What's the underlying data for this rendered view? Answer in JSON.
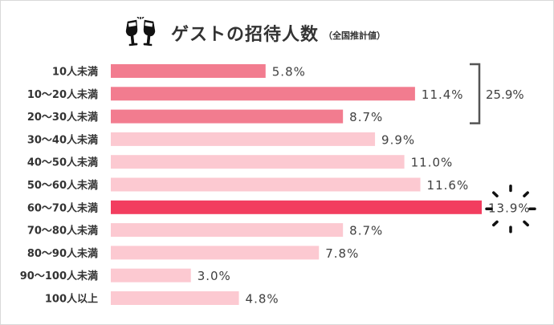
{
  "title": "ゲストの招待人数",
  "subtitle": "（全国推計値）",
  "colors": {
    "top3": "#f27c8f",
    "normal": "#fcc9d1",
    "highlight": "#f23d5f",
    "bracket": "#555555",
    "spark": "#111111"
  },
  "icon": "champagne-glasses-icon",
  "chart_data": {
    "type": "bar",
    "orientation": "horizontal",
    "categories": [
      "10人未満",
      "10～20人未満",
      "20～30人未満",
      "30～40人未満",
      "40～50人未満",
      "50～60人未満",
      "60～70人未満",
      "70～80人未満",
      "80～90人未満",
      "90～100人未満",
      "100人以上"
    ],
    "values": [
      5.8,
      11.4,
      8.7,
      9.9,
      11.0,
      11.6,
      13.9,
      8.7,
      7.8,
      3.0,
      4.8
    ],
    "value_labels": [
      "5.8%",
      "11.4%",
      "8.7%",
      "9.9%",
      "11.0%",
      "11.6%",
      "13.9%",
      "8.7%",
      "7.8%",
      "3.0%",
      "4.8%"
    ],
    "unit": "%",
    "group_total_label": "25.9%",
    "group_indices": [
      0,
      1,
      2
    ],
    "highlight_index": 6,
    "xlim": [
      0,
      13.9
    ],
    "grid": false
  }
}
